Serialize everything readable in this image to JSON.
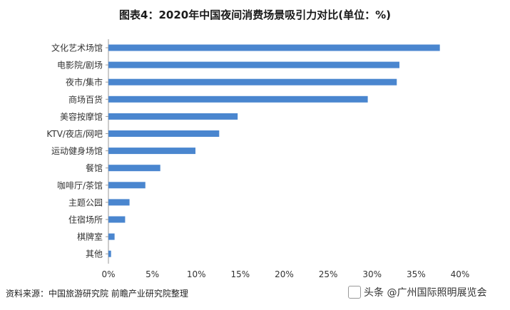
{
  "title": "图表4：2020年中国夜间消费场景吸引力对比(单位：%)",
  "source": "资料来源：中国旅游研究院 前瞻产业研究院整理",
  "credit": "头条 @广州国际照明展览会",
  "colors": {
    "bar": "#4a86cf",
    "axis": "#999999",
    "label": "#333333"
  },
  "chart_data": {
    "type": "bar",
    "orientation": "horizontal",
    "categories": [
      "文化艺术场馆",
      "电影院/剧场",
      "夜市/集市",
      "商场百货",
      "美容按摩馆",
      "KTV/夜店/网吧",
      "运动健身场馆",
      "餐馆",
      "咖啡厅/茶馆",
      "主题公园",
      "住宿场所",
      "棋牌室",
      "其他"
    ],
    "values": [
      37.7,
      33.1,
      32.8,
      29.5,
      14.7,
      12.6,
      9.9,
      5.9,
      4.2,
      2.4,
      1.9,
      0.7,
      0.3
    ],
    "x_ticks": [
      "0%",
      "5%",
      "10%",
      "15%",
      "20%",
      "25%",
      "30%",
      "35%",
      "40%"
    ],
    "xlim": [
      0,
      40
    ],
    "grid": false,
    "legend": "none"
  }
}
